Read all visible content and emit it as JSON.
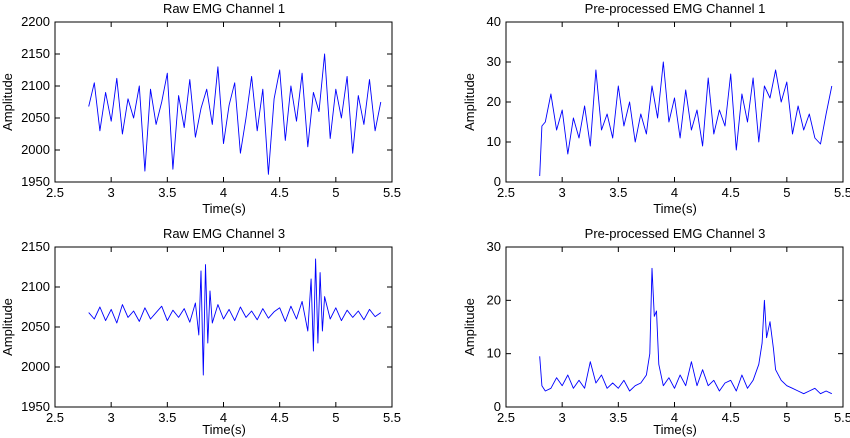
{
  "colors": {
    "line": "#0000ff",
    "axes": "#000000",
    "background": "#ffffff"
  },
  "chart_data": [
    {
      "type": "line",
      "title": "Raw EMG Channel 1",
      "xlabel": "Time(s)",
      "ylabel": "Amplitude",
      "xlim": [
        2.5,
        5.5
      ],
      "ylim": [
        1950,
        2200
      ],
      "xticks": [
        2.5,
        3,
        3.5,
        4,
        4.5,
        5,
        5.5
      ],
      "xtick_labels": [
        "2.5",
        "3",
        "3.5",
        "4",
        "4.5",
        "5",
        "5.5"
      ],
      "yticks": [
        1950,
        2000,
        2050,
        2100,
        2150,
        2200
      ],
      "ytick_labels": [
        "1950",
        "2000",
        "2050",
        "2100",
        "2150",
        "2200"
      ],
      "grid": false,
      "series": [
        {
          "color": "#0000ff",
          "x": [
            2.8,
            2.85,
            2.9,
            2.95,
            3.0,
            3.05,
            3.1,
            3.15,
            3.2,
            3.25,
            3.3,
            3.35,
            3.4,
            3.45,
            3.5,
            3.55,
            3.6,
            3.65,
            3.7,
            3.75,
            3.8,
            3.85,
            3.9,
            3.95,
            4.0,
            4.05,
            4.1,
            4.15,
            4.2,
            4.25,
            4.3,
            4.35,
            4.4,
            4.45,
            4.5,
            4.55,
            4.6,
            4.65,
            4.7,
            4.75,
            4.8,
            4.85,
            4.9,
            4.95,
            5.0,
            5.05,
            5.1,
            5.15,
            5.2,
            5.25,
            5.3,
            5.35,
            5.4
          ],
          "y": [
            2068,
            2105,
            2030,
            2090,
            2045,
            2112,
            2025,
            2080,
            2050,
            2100,
            1967,
            2095,
            2040,
            2075,
            2120,
            1970,
            2085,
            2035,
            2110,
            2020,
            2065,
            2095,
            2040,
            2130,
            2010,
            2070,
            2105,
            1995,
            2050,
            2115,
            2030,
            2095,
            1962,
            2080,
            2125,
            2015,
            2100,
            2045,
            2120,
            2005,
            2090,
            2060,
            2150,
            2018,
            2095,
            2050,
            2115,
            1995,
            2085,
            2040,
            2110,
            2030,
            2075
          ]
        }
      ]
    },
    {
      "type": "line",
      "title": "Pre-processed EMG Channel 1",
      "xlabel": "Time(s)",
      "ylabel": "Amplitude",
      "xlim": [
        2.5,
        5.5
      ],
      "ylim": [
        0,
        40
      ],
      "xticks": [
        2.5,
        3,
        3.5,
        4,
        4.5,
        5,
        5.5
      ],
      "xtick_labels": [
        "2.5",
        "3",
        "3.5",
        "4",
        "4.5",
        "5",
        "5.5"
      ],
      "yticks": [
        0,
        10,
        20,
        30,
        40
      ],
      "ytick_labels": [
        "0",
        "10",
        "20",
        "30",
        "40"
      ],
      "grid": false,
      "series": [
        {
          "color": "#0000ff",
          "x": [
            2.8,
            2.82,
            2.85,
            2.9,
            2.95,
            3.0,
            3.05,
            3.1,
            3.15,
            3.2,
            3.25,
            3.3,
            3.35,
            3.4,
            3.45,
            3.5,
            3.55,
            3.6,
            3.65,
            3.7,
            3.75,
            3.8,
            3.85,
            3.9,
            3.95,
            4.0,
            4.05,
            4.1,
            4.15,
            4.2,
            4.25,
            4.3,
            4.35,
            4.4,
            4.45,
            4.5,
            4.55,
            4.6,
            4.65,
            4.7,
            4.75,
            4.8,
            4.85,
            4.9,
            4.95,
            5.0,
            5.05,
            5.1,
            5.15,
            5.2,
            5.25,
            5.3,
            5.35,
            5.4
          ],
          "y": [
            1.5,
            14,
            15,
            22,
            13,
            18,
            7,
            16,
            11,
            19,
            9,
            28,
            13,
            17,
            11,
            24,
            14,
            20,
            10,
            17,
            12,
            24,
            16,
            30,
            15,
            21,
            11,
            23,
            13,
            18,
            9,
            26,
            12,
            18,
            14,
            27,
            8,
            22,
            15,
            26,
            10,
            24,
            21,
            28,
            20,
            25,
            12,
            19,
            13,
            17,
            11,
            9.5,
            17,
            24
          ]
        }
      ]
    },
    {
      "type": "line",
      "title": "Raw EMG Channel 3",
      "xlabel": "Time(s)",
      "ylabel": "Amplitude",
      "xlim": [
        2.5,
        5.5
      ],
      "ylim": [
        1950,
        2150
      ],
      "xticks": [
        2.5,
        3,
        3.5,
        4,
        4.5,
        5,
        5.5
      ],
      "xtick_labels": [
        "2.5",
        "3",
        "3.5",
        "4",
        "4.5",
        "5",
        "5.5"
      ],
      "yticks": [
        1950,
        2000,
        2050,
        2100,
        2150
      ],
      "ytick_labels": [
        "1950",
        "2000",
        "2050",
        "2100",
        "2150"
      ],
      "grid": false,
      "series": [
        {
          "color": "#0000ff",
          "x": [
            2.8,
            2.85,
            2.9,
            2.95,
            3.0,
            3.05,
            3.1,
            3.15,
            3.2,
            3.25,
            3.3,
            3.35,
            3.4,
            3.45,
            3.5,
            3.55,
            3.6,
            3.65,
            3.7,
            3.75,
            3.78,
            3.8,
            3.82,
            3.84,
            3.86,
            3.88,
            3.9,
            3.95,
            4.0,
            4.05,
            4.1,
            4.15,
            4.2,
            4.25,
            4.3,
            4.35,
            4.4,
            4.45,
            4.5,
            4.55,
            4.6,
            4.65,
            4.7,
            4.75,
            4.78,
            4.8,
            4.82,
            4.84,
            4.86,
            4.88,
            4.9,
            4.95,
            5.0,
            5.05,
            5.1,
            5.15,
            5.2,
            5.25,
            5.3,
            5.35,
            5.4
          ],
          "y": [
            2068,
            2060,
            2075,
            2058,
            2072,
            2055,
            2078,
            2062,
            2070,
            2057,
            2074,
            2060,
            2068,
            2076,
            2058,
            2071,
            2062,
            2073,
            2056,
            2080,
            2040,
            2120,
            1990,
            2128,
            2030,
            2095,
            2055,
            2078,
            2060,
            2072,
            2058,
            2075,
            2062,
            2070,
            2059,
            2073,
            2061,
            2069,
            2074,
            2057,
            2076,
            2060,
            2082,
            2045,
            2110,
            2020,
            2135,
            2030,
            2118,
            2045,
            2088,
            2060,
            2074,
            2058,
            2071,
            2062,
            2070,
            2059,
            2072,
            2063,
            2068
          ]
        }
      ]
    },
    {
      "type": "line",
      "title": "Pre-processed EMG Channel 3",
      "xlabel": "Time(s)",
      "ylabel": "Amplitude",
      "xlim": [
        2.5,
        5.5
      ],
      "ylim": [
        0,
        30
      ],
      "xticks": [
        2.5,
        3,
        3.5,
        4,
        4.5,
        5,
        5.5
      ],
      "xtick_labels": [
        "2.5",
        "3",
        "3.5",
        "4",
        "4.5",
        "5",
        "5.5"
      ],
      "yticks": [
        0,
        10,
        20,
        30
      ],
      "ytick_labels": [
        "0",
        "10",
        "20",
        "30"
      ],
      "grid": false,
      "series": [
        {
          "color": "#0000ff",
          "x": [
            2.8,
            2.82,
            2.85,
            2.9,
            2.95,
            3.0,
            3.05,
            3.1,
            3.15,
            3.2,
            3.25,
            3.3,
            3.35,
            3.4,
            3.45,
            3.5,
            3.55,
            3.6,
            3.65,
            3.7,
            3.75,
            3.78,
            3.8,
            3.82,
            3.84,
            3.86,
            3.9,
            3.95,
            4.0,
            4.05,
            4.1,
            4.15,
            4.2,
            4.25,
            4.3,
            4.35,
            4.4,
            4.45,
            4.5,
            4.55,
            4.6,
            4.65,
            4.7,
            4.75,
            4.78,
            4.8,
            4.82,
            4.85,
            4.88,
            4.9,
            4.95,
            5.0,
            5.05,
            5.1,
            5.15,
            5.2,
            5.25,
            5.3,
            5.35,
            5.4
          ],
          "y": [
            9.5,
            4,
            3,
            3.5,
            5.5,
            4,
            6,
            3.5,
            5,
            3.5,
            8.5,
            4.5,
            6,
            3.5,
            4.5,
            3.5,
            5,
            3,
            4,
            4.5,
            6,
            10,
            26,
            17,
            18,
            8,
            4,
            5.5,
            3.5,
            6,
            4,
            8.5,
            4,
            7,
            4,
            5,
            3,
            4.5,
            5,
            3,
            6,
            3.5,
            5,
            8,
            12,
            20,
            13,
            16,
            11,
            7,
            5,
            4,
            3.5,
            3,
            2.5,
            3,
            3.5,
            2.5,
            3,
            2.5
          ]
        }
      ]
    }
  ]
}
